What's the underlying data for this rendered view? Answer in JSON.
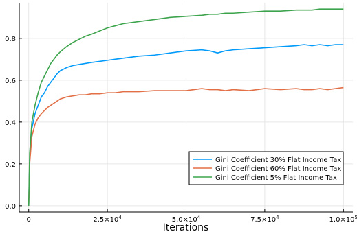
{
  "chart_data": {
    "type": "line",
    "title": "",
    "xlabel": "Iterations",
    "ylabel": "",
    "xlim": [
      -3000,
      103000
    ],
    "ylim": [
      -0.03,
      0.97
    ],
    "grid": true,
    "legend_position": "bottom-right",
    "x_ticks": [
      {
        "value": 0,
        "label": "0"
      },
      {
        "value": 25000,
        "label": "2.5×10",
        "exp": "4"
      },
      {
        "value": 50000,
        "label": "5.0×10",
        "exp": "4"
      },
      {
        "value": 75000,
        "label": "7.5×10",
        "exp": "4"
      },
      {
        "value": 100000,
        "label": "1.0×10",
        "exp": "5"
      }
    ],
    "y_ticks": [
      {
        "value": 0.0,
        "label": "0.0"
      },
      {
        "value": 0.2,
        "label": "0.2"
      },
      {
        "value": 0.4,
        "label": "0.4"
      },
      {
        "value": 0.6,
        "label": "0.6"
      },
      {
        "value": 0.8,
        "label": "0.8"
      }
    ],
    "x": [
      0,
      300,
      1000,
      2000,
      3000,
      4000,
      5000,
      6000,
      7000,
      8000,
      9000,
      10000,
      12000,
      14000,
      16000,
      18000,
      20000,
      22500,
      25000,
      27500,
      30000,
      35000,
      40000,
      45000,
      50000,
      55000,
      57500,
      60000,
      62500,
      65000,
      70000,
      75000,
      80000,
      85000,
      87500,
      90000,
      92500,
      95000,
      97500,
      100000
    ],
    "series": [
      {
        "name": "Gini Coefficient 30% Flat Income Tax",
        "color": "#009AFA",
        "values": [
          0.0,
          0.22,
          0.37,
          0.44,
          0.48,
          0.52,
          0.54,
          0.57,
          0.59,
          0.61,
          0.63,
          0.645,
          0.66,
          0.67,
          0.675,
          0.68,
          0.685,
          0.69,
          0.695,
          0.7,
          0.705,
          0.715,
          0.72,
          0.73,
          0.74,
          0.745,
          0.74,
          0.73,
          0.74,
          0.745,
          0.75,
          0.755,
          0.76,
          0.765,
          0.77,
          0.765,
          0.77,
          0.765,
          0.77,
          0.77
        ]
      },
      {
        "name": "Gini Coefficient 60% Flat Income Tax",
        "color": "#E26F46",
        "values": [
          0.0,
          0.2,
          0.33,
          0.39,
          0.42,
          0.44,
          0.455,
          0.47,
          0.48,
          0.49,
          0.5,
          0.51,
          0.52,
          0.525,
          0.53,
          0.53,
          0.535,
          0.535,
          0.54,
          0.54,
          0.545,
          0.545,
          0.55,
          0.55,
          0.55,
          0.56,
          0.555,
          0.555,
          0.55,
          0.555,
          0.55,
          0.56,
          0.555,
          0.56,
          0.555,
          0.555,
          0.56,
          0.555,
          0.56,
          0.565
        ]
      },
      {
        "name": "Gini Coefficient 5% Flat Income Tax",
        "color": "#3DA44D",
        "values": [
          0.0,
          0.25,
          0.4,
          0.48,
          0.54,
          0.59,
          0.62,
          0.65,
          0.68,
          0.7,
          0.72,
          0.735,
          0.76,
          0.78,
          0.795,
          0.81,
          0.82,
          0.835,
          0.85,
          0.86,
          0.87,
          0.88,
          0.89,
          0.9,
          0.905,
          0.91,
          0.915,
          0.915,
          0.92,
          0.92,
          0.925,
          0.93,
          0.93,
          0.935,
          0.935,
          0.935,
          0.94,
          0.94,
          0.94,
          0.94
        ]
      }
    ]
  }
}
